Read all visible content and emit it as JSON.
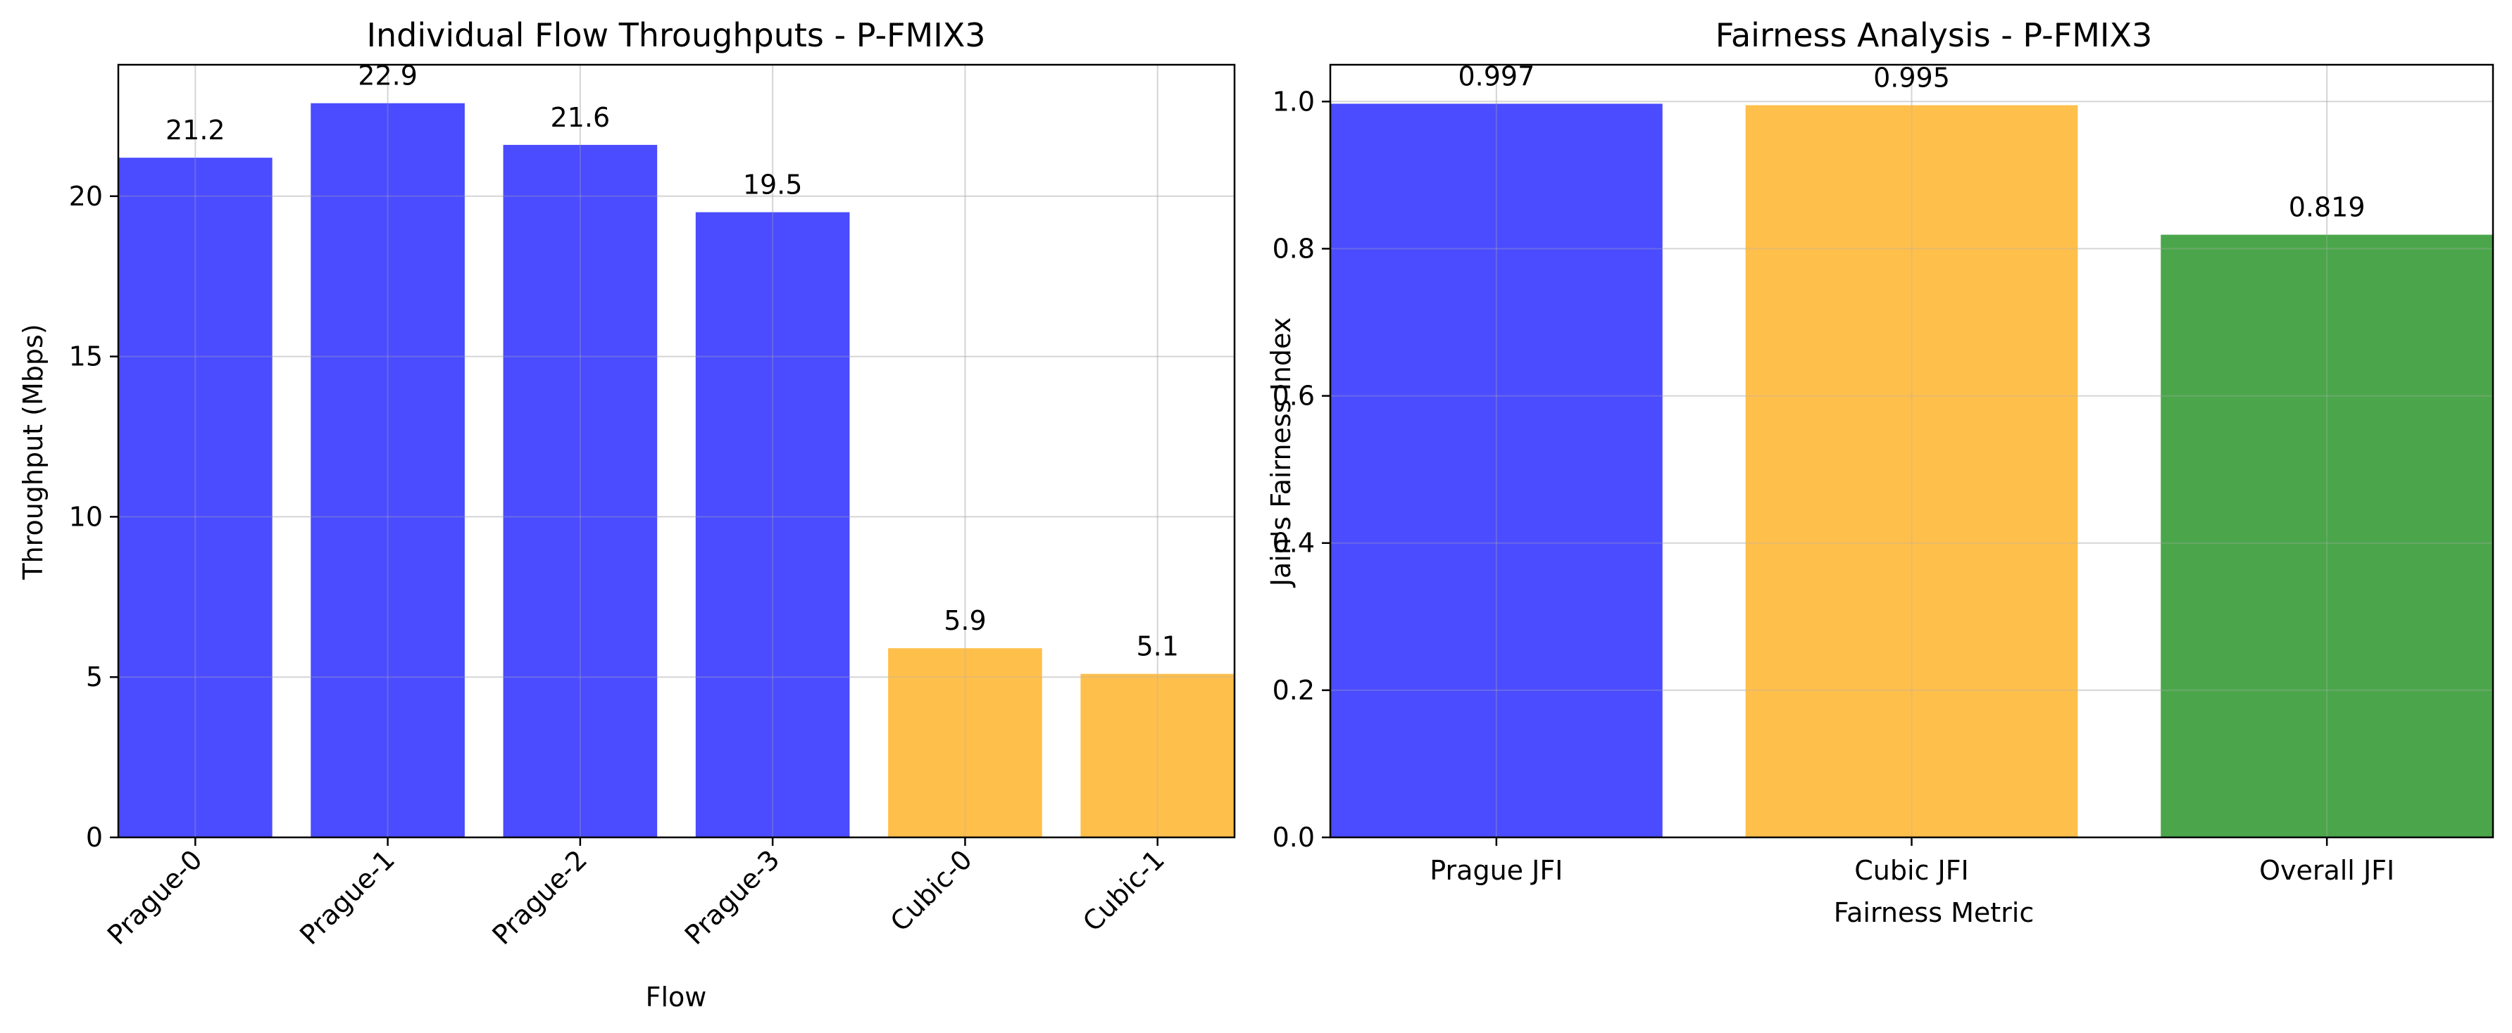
{
  "chart_data": [
    {
      "type": "bar",
      "title": "Individual Flow Throughputs - P-FMIX3",
      "xlabel": "Flow",
      "ylabel": "Throughput (Mbps)",
      "categories": [
        "Prague-0",
        "Prague-1",
        "Prague-2",
        "Prague-3",
        "Cubic-0",
        "Cubic-1"
      ],
      "values": [
        21.2,
        22.9,
        21.6,
        19.5,
        5.9,
        5.1
      ],
      "value_labels": [
        "21.2",
        "22.9",
        "21.6",
        "19.5",
        "5.9",
        "5.1"
      ],
      "bar_colors": [
        "#4b4bff",
        "#4b4bff",
        "#4b4bff",
        "#4b4bff",
        "#ffbf4b",
        "#ffbf4b"
      ],
      "ylim": [
        0,
        24.1
      ],
      "yticks": [
        0,
        5,
        10,
        15,
        20
      ],
      "ytick_labels": [
        "0",
        "5",
        "10",
        "15",
        "20"
      ],
      "xtick_rotation": 45,
      "grid": true
    },
    {
      "type": "bar",
      "title": "Fairness Analysis - P-FMIX3",
      "xlabel": "Fairness Metric",
      "ylabel": "Jain's Fairness Index",
      "categories": [
        "Prague JFI",
        "Cubic JFI",
        "Overall JFI"
      ],
      "values": [
        0.997,
        0.995,
        0.819
      ],
      "value_labels": [
        "0.997",
        "0.995",
        "0.819"
      ],
      "bar_colors": [
        "#4b4bff",
        "#ffbf4b",
        "#4ba64b"
      ],
      "ylim": [
        0,
        1.05
      ],
      "yticks": [
        0.0,
        0.2,
        0.4,
        0.6,
        0.8,
        1.0
      ],
      "ytick_labels": [
        "0.0",
        "0.2",
        "0.4",
        "0.6",
        "0.8",
        "1.0"
      ],
      "xtick_rotation": 0,
      "grid": true
    }
  ]
}
